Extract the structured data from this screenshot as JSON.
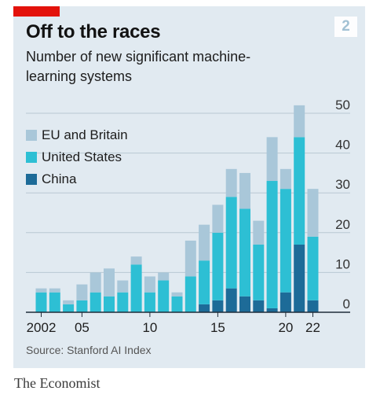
{
  "header": {
    "title": "Off to the races",
    "subtitle": "Number of new significant machine-learning systems",
    "badge": "2"
  },
  "footer": {
    "source": "Source: Stanford AI Index",
    "brand": "The Economist"
  },
  "colors": {
    "panel": "#e1eaf1",
    "accent_red": "#e3120b",
    "eu_britain": "#a9c7d9",
    "united_states": "#2dbfd4",
    "china": "#1d6b98",
    "gridline": "#b9c8d3",
    "baseline": "#1f2d3a"
  },
  "chart_data": {
    "type": "bar",
    "stacked": true,
    "categories": [
      "2002",
      "2003",
      "2004",
      "2005",
      "2006",
      "2007",
      "2008",
      "2009",
      "2010",
      "2011",
      "2012",
      "2013",
      "2014",
      "2015",
      "2016",
      "2017",
      "2018",
      "2019",
      "2020",
      "2021",
      "2022"
    ],
    "series": [
      {
        "name": "China",
        "color": "#1d6b98",
        "values": [
          0,
          0,
          0,
          0,
          0,
          0,
          0,
          0,
          0,
          0,
          0,
          0,
          2,
          3,
          6,
          4,
          3,
          1,
          5,
          17,
          3
        ]
      },
      {
        "name": "United States",
        "color": "#2dbfd4",
        "values": [
          5,
          5,
          2,
          3,
          5,
          4,
          5,
          12,
          5,
          8,
          4,
          9,
          11,
          17,
          23,
          22,
          14,
          32,
          26,
          27,
          16
        ]
      },
      {
        "name": "EU and Britain",
        "color": "#a9c7d9",
        "values": [
          1,
          1,
          1,
          4,
          5,
          7,
          3,
          2,
          4,
          2,
          1,
          9,
          9,
          7,
          7,
          9,
          6,
          11,
          5,
          8,
          12
        ]
      }
    ],
    "legend_order": [
      "EU and Britain",
      "United States",
      "China"
    ],
    "y_ticks": [
      "0",
      "10",
      "20",
      "30",
      "40",
      "50"
    ],
    "x_tick_labels": [
      {
        "index": 0,
        "label": "2002"
      },
      {
        "index": 3,
        "label": "05"
      },
      {
        "index": 8,
        "label": "10"
      },
      {
        "index": 13,
        "label": "15"
      },
      {
        "index": 18,
        "label": "20"
      },
      {
        "index": 20,
        "label": "22"
      }
    ],
    "ylim": [
      0,
      50
    ],
    "y_axis_side": "right",
    "grid": true,
    "legend_position": "top-left"
  }
}
